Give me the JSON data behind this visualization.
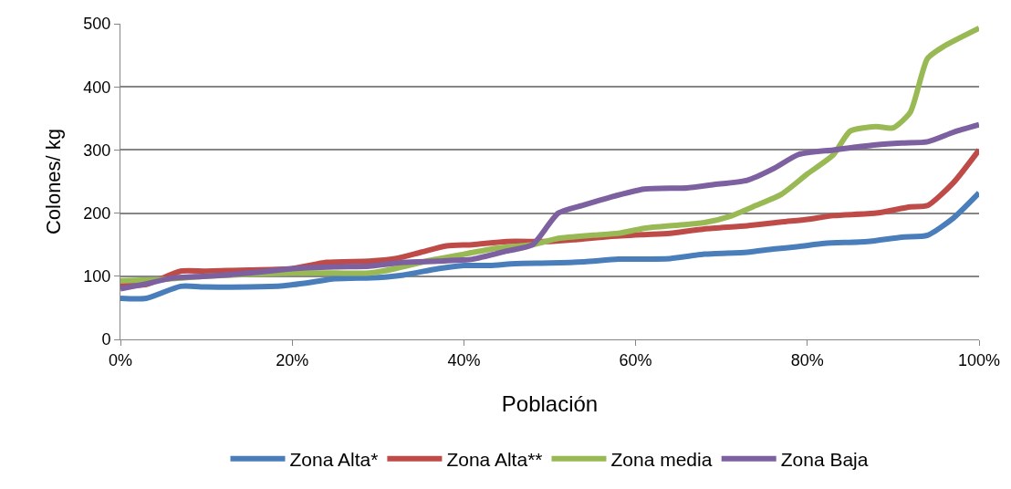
{
  "chart_data": {
    "type": "line",
    "xlabel": "Población",
    "ylabel": "Colones/ kg",
    "xlim": [
      0,
      100
    ],
    "xticks": [
      {
        "value": 0,
        "label": "0%"
      },
      {
        "value": 20,
        "label": "20%"
      },
      {
        "value": 40,
        "label": "40%"
      },
      {
        "value": 60,
        "label": "60%"
      },
      {
        "value": 80,
        "label": "80%"
      },
      {
        "value": 100,
        "label": "100%"
      }
    ],
    "ylim": [
      0,
      500
    ],
    "yticks": [
      0,
      100,
      200,
      300,
      400,
      500
    ],
    "grid": "y",
    "legend": "bottom",
    "marker": "none",
    "line_style": "solid",
    "series": [
      {
        "name": "Zona Alta*",
        "color": "#4a7ebb",
        "x": [
          0,
          3,
          7,
          10,
          15,
          19,
          22,
          25,
          30,
          33,
          37,
          40,
          43,
          46,
          50,
          54,
          58,
          64,
          68,
          73,
          76,
          79,
          82,
          87,
          91,
          94,
          97,
          100
        ],
        "values": [
          65,
          65,
          84,
          83,
          83,
          85,
          90,
          96,
          98,
          102,
          112,
          117,
          117,
          120,
          121,
          123,
          127,
          128,
          135,
          138,
          143,
          147,
          152,
          155,
          162,
          165,
          192,
          232
        ]
      },
      {
        "name": "Zona Alta**",
        "color": "#be4b48",
        "x": [
          0,
          3,
          7,
          10,
          15,
          20,
          24,
          29,
          32,
          35,
          38,
          41,
          45,
          50,
          53,
          57,
          61,
          64,
          68,
          73,
          77,
          80,
          83,
          88,
          92,
          94,
          97,
          100
        ],
        "values": [
          85,
          87,
          108,
          108,
          110,
          112,
          122,
          124,
          128,
          138,
          148,
          150,
          155,
          155,
          158,
          163,
          166,
          168,
          175,
          180,
          186,
          190,
          196,
          200,
          210,
          212,
          248,
          300
        ]
      },
      {
        "name": "Zona media",
        "color": "#98b954",
        "x": [
          0,
          5,
          10,
          15,
          20,
          25,
          29,
          32,
          36,
          40,
          44,
          48,
          51,
          55,
          58,
          61,
          65,
          68,
          71,
          74,
          77,
          80,
          83,
          85,
          88,
          90,
          92,
          94,
          96,
          100
        ],
        "values": [
          93,
          95,
          100,
          103,
          105,
          105,
          105,
          112,
          125,
          135,
          145,
          150,
          160,
          165,
          168,
          176,
          181,
          185,
          195,
          212,
          230,
          262,
          292,
          330,
          337,
          335,
          360,
          445,
          465,
          493
        ]
      },
      {
        "name": "Zona Baja",
        "color": "#7d60a0",
        "x": [
          0,
          3,
          6,
          10,
          15,
          20,
          25,
          29,
          33,
          37,
          41,
          45,
          48,
          51,
          54,
          57,
          61,
          66,
          69,
          73,
          76,
          79,
          83,
          88,
          91,
          94,
          97,
          100
        ],
        "values": [
          80,
          88,
          97,
          100,
          105,
          112,
          115,
          116,
          122,
          124,
          127,
          140,
          150,
          200,
          213,
          225,
          238,
          240,
          245,
          252,
          270,
          293,
          300,
          308,
          311,
          313,
          328,
          340
        ]
      }
    ]
  }
}
